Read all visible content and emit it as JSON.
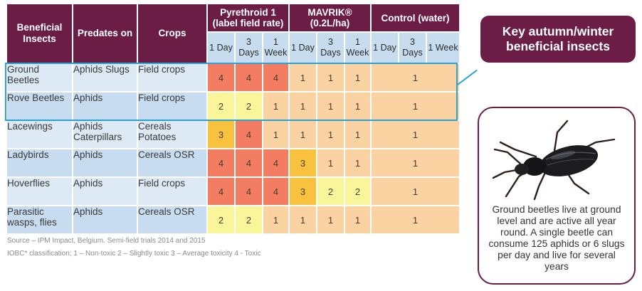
{
  "table": {
    "headers": {
      "insects": "Beneficial Insects",
      "predates": "Predates on",
      "crops": "Crops",
      "groups": [
        "Pyrethroid 1 (label field rate)",
        "MAVRIK® (0.2L/ha)",
        "Control (water)"
      ],
      "sub": [
        "1 Day",
        "3 Days",
        "1 Week"
      ]
    },
    "rows": [
      {
        "insect": "Ground Beetles",
        "predates": "Aphids Slugs",
        "crops": "Field crops",
        "values": [
          4,
          4,
          4,
          1,
          1,
          1
        ],
        "control": 1
      },
      {
        "insect": "Rove Beetles",
        "predates": "Aphids",
        "crops": "Field crops",
        "values": [
          2,
          2,
          1,
          1,
          1,
          1
        ],
        "control": 1
      },
      {
        "insect": "Lacewings",
        "predates": "Aphids Caterpillars",
        "crops": "Cereals Potatoes",
        "values": [
          3,
          4,
          1,
          1,
          1,
          1
        ],
        "control": 1
      },
      {
        "insect": "Ladybirds",
        "predates": "Aphids",
        "crops": "Cereals OSR",
        "values": [
          4,
          4,
          4,
          3,
          1,
          1
        ],
        "control": 1
      },
      {
        "insect": "Hoverflies",
        "predates": "Aphids",
        "crops": "Field crops",
        "values": [
          4,
          4,
          4,
          3,
          2,
          2
        ],
        "control": 1
      },
      {
        "insect": "Parasitic wasps, flies",
        "predates": "Aphids",
        "crops": "Cereals OSR",
        "values": [
          2,
          2,
          1,
          1,
          1,
          1
        ],
        "control": 1
      }
    ]
  },
  "colors": {
    "1": "#fbd2a2",
    "2": "#f9f59a",
    "3": "#f8c23e",
    "4": "#f27d62",
    "header": "#6c1d45",
    "highlight": "#2aa3d4"
  },
  "key_label": "Key autumn/winter beneficial insects",
  "beetle_caption": "Ground beetles live at ground level and are active all year round. A single beetle can consume 125 aphids or 6 slugs per day and live for several years",
  "source": "Source – IPM Impact, Belgium. Semi-field trials 2014 and 2015",
  "classification": "IOBC* classification; 1 – Non-toxic 2 – Slightly toxic 3 – Average toxicity 4 - Toxic"
}
